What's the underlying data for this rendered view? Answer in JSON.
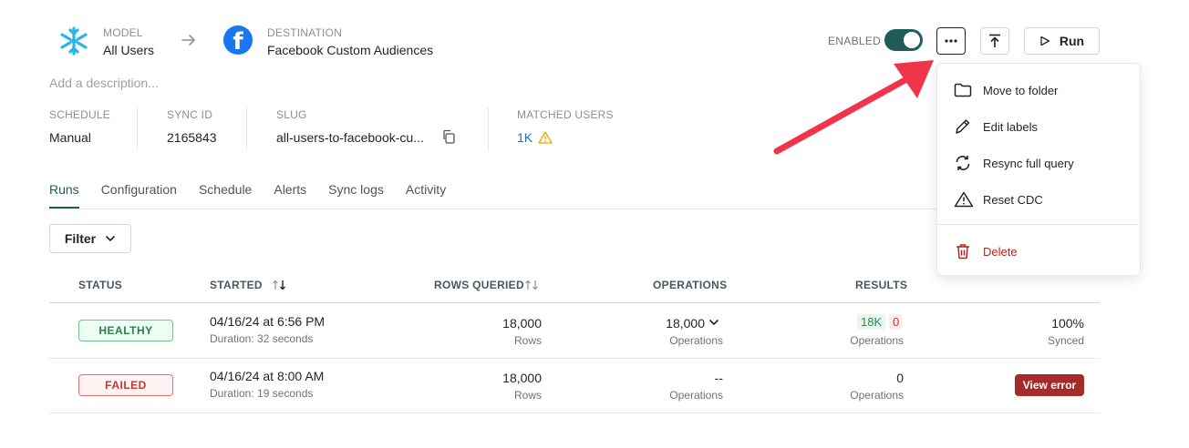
{
  "header": {
    "model_label": "MODEL",
    "model_value": "All Users",
    "destination_label": "DESTINATION",
    "destination_value": "Facebook Custom Audiences",
    "enabled_label": "ENABLED",
    "enabled": true,
    "run_label": "Run",
    "description_placeholder": "Add a description..."
  },
  "meta": {
    "schedule_label": "SCHEDULE",
    "schedule_value": "Manual",
    "sync_id_label": "SYNC ID",
    "sync_id_value": "2165843",
    "slug_label": "SLUG",
    "slug_value": "all-users-to-facebook-cu...",
    "matched_label": "MATCHED USERS",
    "matched_value": "1K"
  },
  "tabs": [
    {
      "label": "Runs",
      "active": true
    },
    {
      "label": "Configuration"
    },
    {
      "label": "Schedule"
    },
    {
      "label": "Alerts"
    },
    {
      "label": "Sync logs"
    },
    {
      "label": "Activity"
    }
  ],
  "filter_label": "Filter",
  "table": {
    "headers": {
      "status": "STATUS",
      "started": "STARTED",
      "rows_queried": "ROWS QUERIED",
      "operations": "OPERATIONS",
      "results": "RESULTS"
    },
    "rows": [
      {
        "status": "HEALTHY",
        "started": "04/16/24 at 6:56 PM",
        "duration": "Duration: 32 seconds",
        "rows": "18,000",
        "rows_unit": "Rows",
        "operations": "18,000",
        "operations_unit": "Operations",
        "results_success": "18K",
        "results_fail": "0",
        "results_unit": "Operations",
        "synced_pct": "100%",
        "synced_label": "Synced"
      },
      {
        "status": "FAILED",
        "started": "04/16/24 at 8:00 AM",
        "duration": "Duration: 19 seconds",
        "rows": "18,000",
        "rows_unit": "Rows",
        "operations": "--",
        "operations_unit": "Operations",
        "results_value": "0",
        "results_unit": "Operations",
        "error_button": "View error"
      }
    ]
  },
  "menu": {
    "items": [
      {
        "label": "Move to folder",
        "icon": "folder-icon"
      },
      {
        "label": "Edit labels",
        "icon": "pencil-icon"
      },
      {
        "label": "Resync full query",
        "icon": "resync-icon"
      },
      {
        "label": "Reset CDC",
        "icon": "warning-icon"
      },
      {
        "label": "Delete",
        "icon": "trash-icon"
      }
    ]
  },
  "colors": {
    "accent": "#1f5c5a",
    "danger": "#b3261e",
    "annotation_arrow": "#f0344a"
  }
}
